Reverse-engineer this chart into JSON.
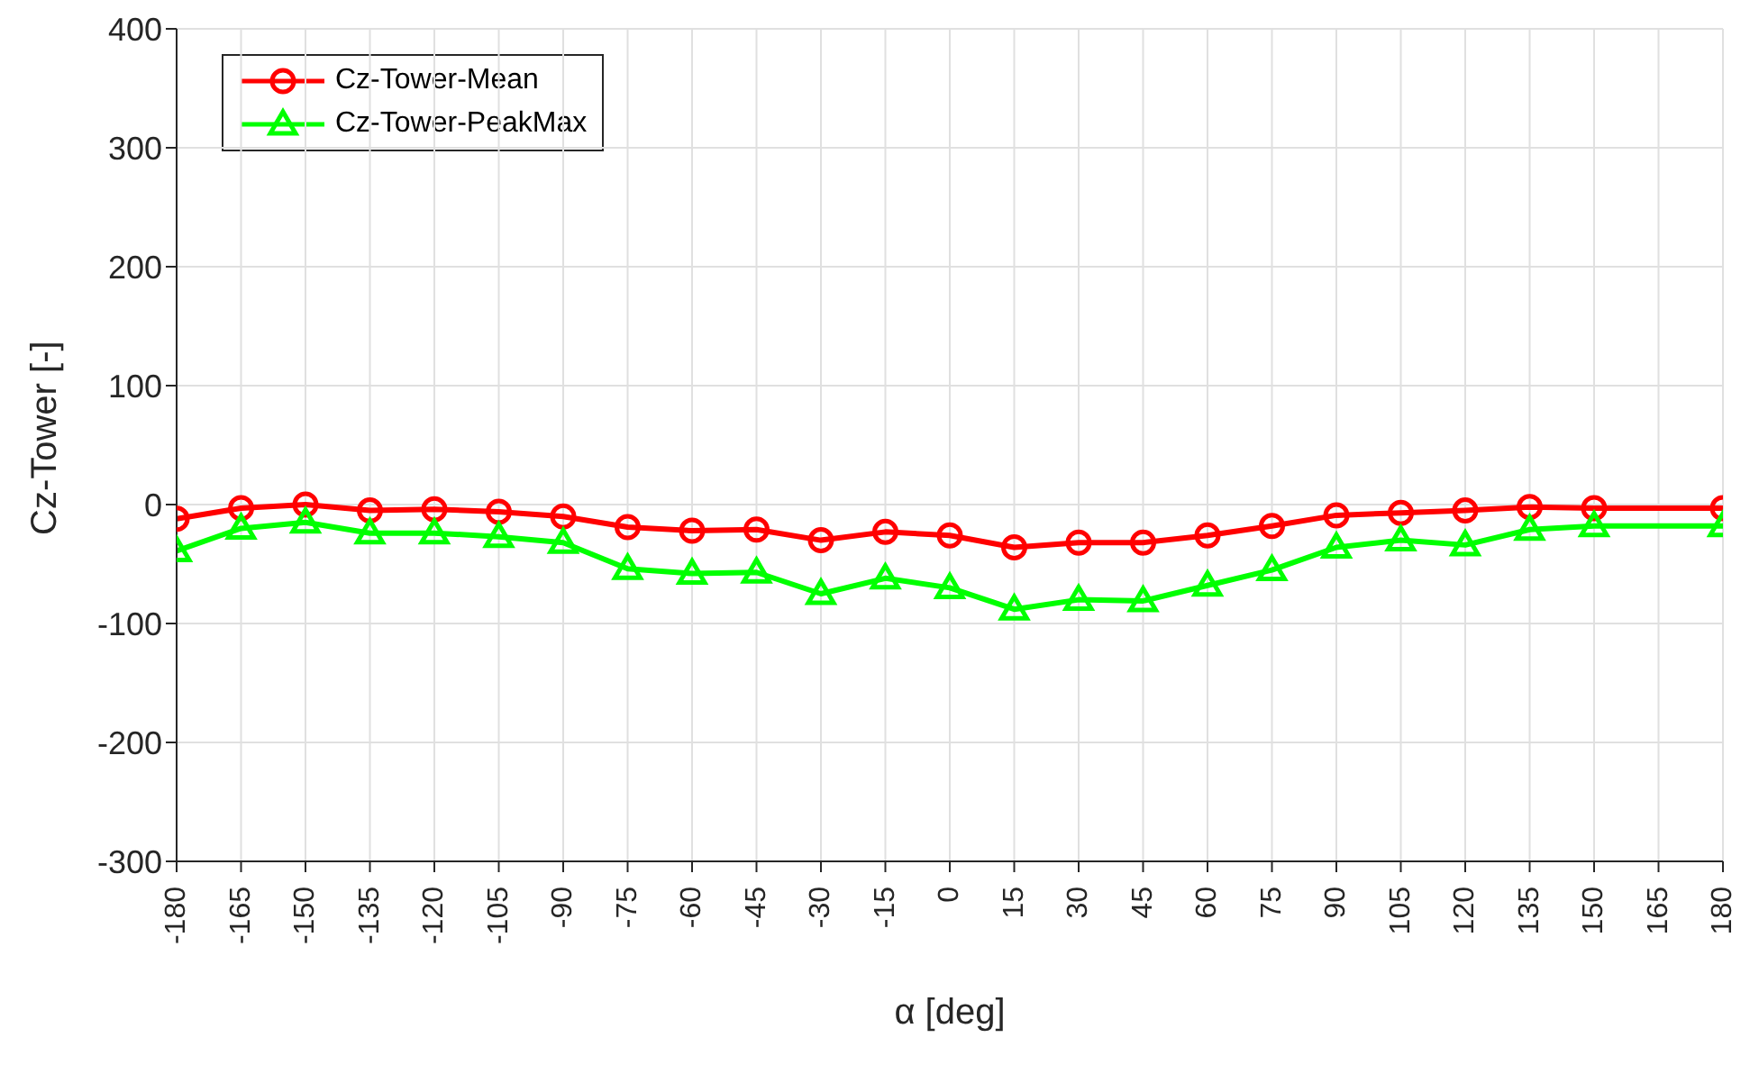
{
  "chart_data": {
    "type": "line",
    "xlabel": "α [deg]",
    "ylabel": "Cz-Tower [-]",
    "x": [
      -180,
      -165,
      -150,
      -135,
      -120,
      -105,
      -90,
      -75,
      -60,
      -45,
      -30,
      -15,
      0,
      15,
      30,
      45,
      60,
      75,
      90,
      105,
      120,
      135,
      150,
      180
    ],
    "series": [
      {
        "name": "Cz-Tower-Mean",
        "color": "#ff0000",
        "marker": "circle",
        "values": [
          -12,
          -3,
          0,
          -5,
          -4,
          -6,
          -10,
          -19,
          -22,
          -21,
          -30,
          -23,
          -26,
          -36,
          -32,
          -32,
          -26,
          -18,
          -9,
          -7,
          -5,
          -2,
          -3,
          -3
        ]
      },
      {
        "name": "Cz-Tower-PeakMax",
        "color": "#00ff00",
        "marker": "triangle",
        "values": [
          -39,
          -20,
          -15,
          -24,
          -24,
          -27,
          -32,
          -54,
          -58,
          -57,
          -75,
          -62,
          -70,
          -88,
          -80,
          -81,
          -68,
          -55,
          -36,
          -30,
          -34,
          -21,
          -18,
          -18
        ]
      }
    ],
    "xlim": [
      -180,
      180
    ],
    "xticks": [
      -180,
      -165,
      -150,
      -135,
      -120,
      -105,
      -90,
      -75,
      -60,
      -45,
      -30,
      -15,
      0,
      15,
      30,
      45,
      60,
      75,
      90,
      105,
      120,
      135,
      150,
      165,
      180
    ],
    "ylim": [
      -300,
      400
    ],
    "yticks": [
      -300,
      -200,
      -100,
      0,
      100,
      200,
      300,
      400
    ],
    "grid": true,
    "legend": "top left",
    "line_style": "solid"
  }
}
